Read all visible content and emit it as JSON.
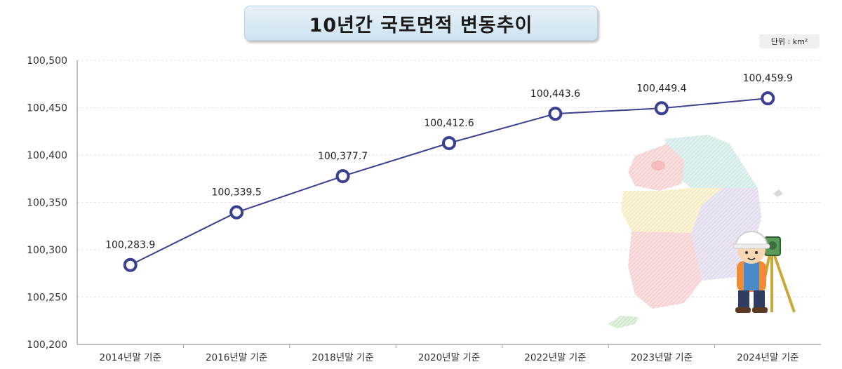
{
  "chart_data": {
    "type": "line",
    "title": "10년간 국토면적 변동추이",
    "unit": "단위 : km²",
    "categories": [
      "2014년말 기준",
      "2016년말 기준",
      "2018년말 기준",
      "2020년말 기준",
      "2022년말 기준",
      "2023년말 기준",
      "2024년말 기준"
    ],
    "values": [
      100283.9,
      100339.5,
      100377.7,
      100412.6,
      100443.6,
      100449.4,
      100459.9
    ],
    "value_labels": [
      "100,283.9",
      "100,339.5",
      "100,377.7",
      "100,412.6",
      "100,443.6",
      "100,449.4",
      "100,459.9"
    ],
    "ylim": [
      100200,
      100500
    ],
    "yticks": [
      100500,
      100450,
      100400,
      100350,
      100300,
      100250,
      100200
    ],
    "ytick_labels": [
      "100,500",
      "100,450",
      "100,400",
      "100,350",
      "100,300",
      "100,250",
      "100,200"
    ],
    "grid": true,
    "line_color": "#3a3f8f",
    "marker_fill": "#ffffff",
    "marker_stroke": "#3a3f8f"
  },
  "illustration": {
    "map_icon": "korea-map-icon",
    "surveyor_icon": "surveyor-character-icon"
  }
}
